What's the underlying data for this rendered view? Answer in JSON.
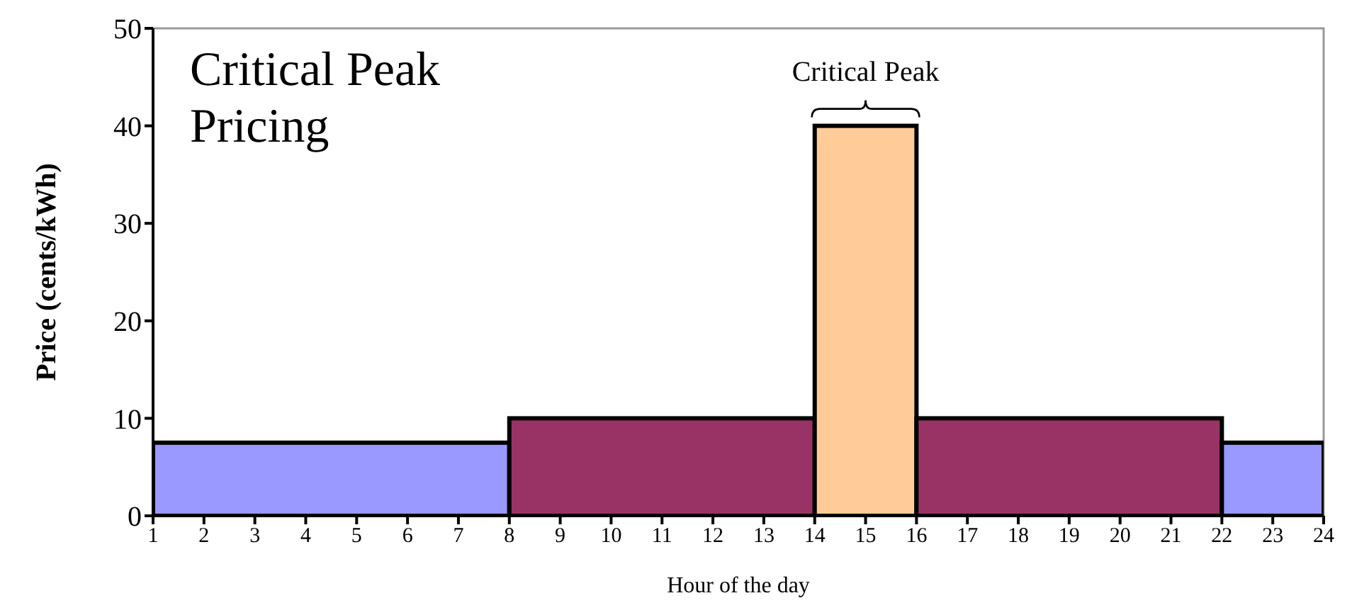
{
  "chart_data": {
    "type": "histogram",
    "title": "Critical Peak Pricing",
    "xlabel": "Hour of the day",
    "ylabel": "Price (cents/kWh)",
    "bins": [
      1,
      8,
      14,
      16,
      22,
      24
    ],
    "values": [
      7.5,
      10,
      40,
      10,
      7.5
    ],
    "colors": [
      "#9999ff",
      "#993366",
      "#ffcc99",
      "#993366",
      "#9999ff"
    ],
    "xlim": [
      1,
      24
    ],
    "xticks": [
      1,
      2,
      3,
      4,
      5,
      6,
      7,
      8,
      9,
      10,
      11,
      12,
      13,
      14,
      15,
      16,
      17,
      18,
      19,
      20,
      21,
      22,
      23,
      24
    ],
    "ylim": [
      0,
      50
    ],
    "yticks": [
      0,
      10,
      20,
      30,
      40,
      50
    ],
    "annotations": [
      "Critical Peak"
    ],
    "grid": false,
    "legend": false
  }
}
